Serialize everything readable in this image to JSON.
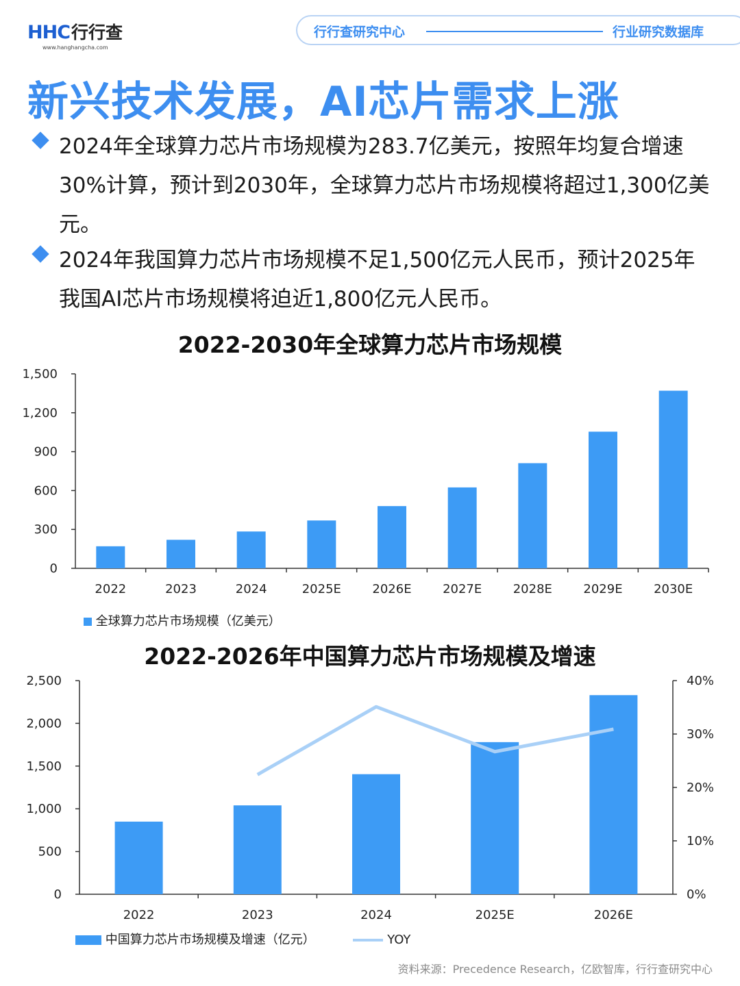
{
  "header": {
    "logo_mark": "HHC",
    "logo_name": "行行查",
    "logo_url": "www.hanghangcha.com",
    "pill_left": "行行查研究中心",
    "pill_right": "行业研究数据库"
  },
  "title": "新兴技术发展，AI芯片需求上涨",
  "bullets": [
    "2024年全球算力芯片市场规模为283.7亿美元，按照年均复合增速30%计算，预计到2030年，全球算力芯片市场规模将超过1,300亿美元。",
    "2024年我国算力芯片市场规模不足1,500亿元人民币，预计2025年我国AI芯片市场规模将迫近1,800亿元人民币。"
  ],
  "colors": {
    "accent": "#3d8ef0",
    "bar": "#3d9bf5",
    "line": "#a9d0f7"
  },
  "chart_data": [
    {
      "type": "bar",
      "title": "2022-2030年全球算力芯片市场规模",
      "categories": [
        "2022",
        "2023",
        "2024",
        "2025E",
        "2026E",
        "2027E",
        "2028E",
        "2029E",
        "2030E"
      ],
      "series": [
        {
          "name": "全球算力芯片市场规模（亿美元）",
          "values": [
            170,
            220,
            284,
            369,
            480,
            624,
            811,
            1054,
            1370
          ]
        }
      ],
      "ylim": [
        0,
        1500
      ],
      "yticks": [
        0,
        300,
        600,
        900,
        1200,
        1500
      ],
      "ytick_labels": [
        "0",
        "300",
        "600",
        "900",
        "1,200",
        "1,500"
      ],
      "grid": false,
      "legend_position": "bottom-left"
    },
    {
      "type": "bar",
      "title": "2022-2026年中国算力芯片市场规模及增速",
      "categories": [
        "2022",
        "2023",
        "2024",
        "2025E",
        "2026E"
      ],
      "series": [
        {
          "name": "中国算力芯片市场规模及增速（亿元）",
          "values": [
            850,
            1040,
            1405,
            1780,
            2330
          ]
        },
        {
          "name": "YOY",
          "type": "line",
          "axis": "right",
          "values": [
            null,
            22.4,
            35.1,
            26.7,
            30.9
          ]
        }
      ],
      "ylim": [
        0,
        2500
      ],
      "yticks": [
        0,
        500,
        1000,
        1500,
        2000,
        2500
      ],
      "ytick_labels": [
        "0",
        "500",
        "1,000",
        "1,500",
        "2,000",
        "2,500"
      ],
      "y2lim": [
        0,
        40
      ],
      "y2ticks": [
        0,
        10,
        20,
        30,
        40
      ],
      "y2tick_labels": [
        "0%",
        "10%",
        "20%",
        "30%",
        "40%"
      ],
      "grid": false,
      "legend_position": "bottom-left"
    }
  ],
  "source": "资料来源：Precedence Research，亿欧智库，行行查研究中心"
}
